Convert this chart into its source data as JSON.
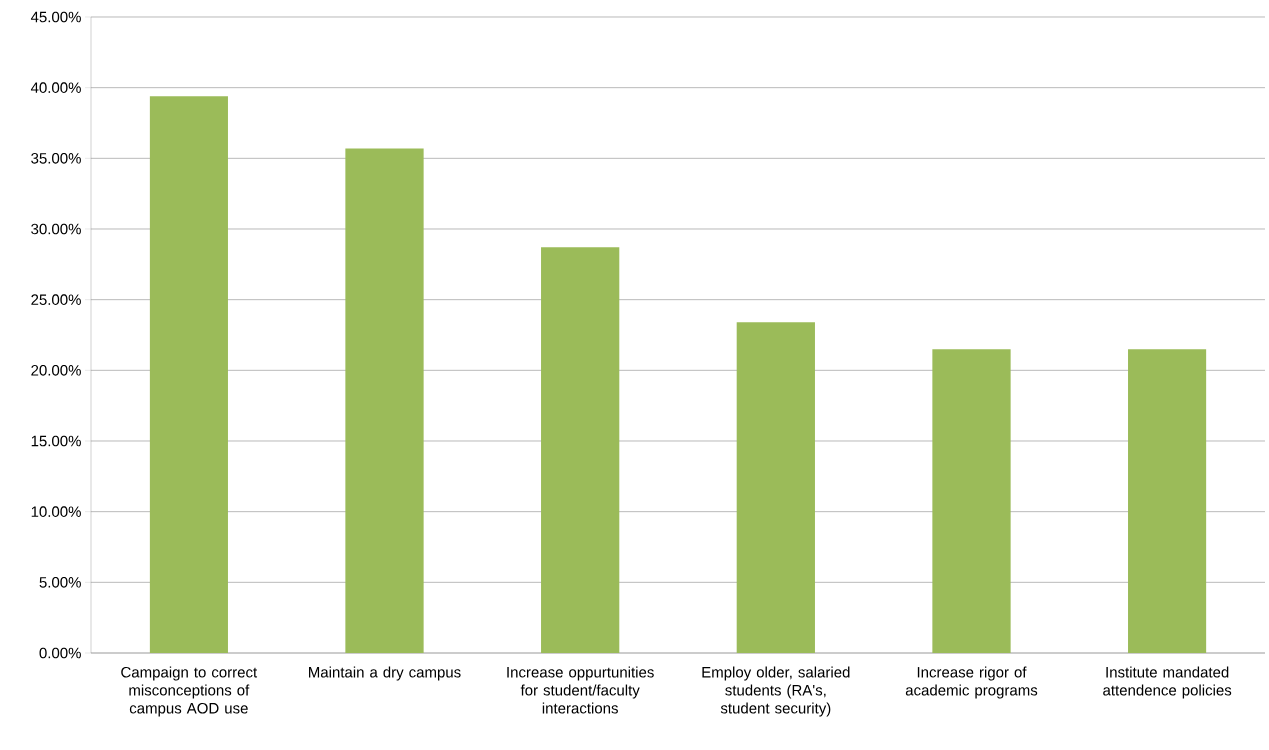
{
  "chart_data": {
    "type": "bar",
    "categories": [
      "Campaign to correct misconceptions of campus AOD use",
      "Maintain a dry campus",
      "Increase oppurtunities for student/faculty interactions",
      "Employ older, salaried students (RA's, student security)",
      "Increase rigor of academic programs",
      "Institute mandated attendence policies"
    ],
    "values": [
      39.4,
      35.7,
      28.7,
      23.4,
      21.5,
      21.5
    ],
    "color": "#9bbb59",
    "ylim": [
      0,
      45
    ],
    "yticks": [
      {
        "value": 0,
        "label": "0.00%"
      },
      {
        "value": 5,
        "label": "5.00%"
      },
      {
        "value": 10,
        "label": "10.00%"
      },
      {
        "value": 15,
        "label": "15.00%"
      },
      {
        "value": 20,
        "label": "20.00%"
      },
      {
        "value": 25,
        "label": "25.00%"
      },
      {
        "value": 30,
        "label": "30.00%"
      },
      {
        "value": 35,
        "label": "35.00%"
      },
      {
        "value": 40,
        "label": "40.00%"
      },
      {
        "value": 45,
        "label": "45.00%"
      }
    ],
    "grid": "y"
  }
}
